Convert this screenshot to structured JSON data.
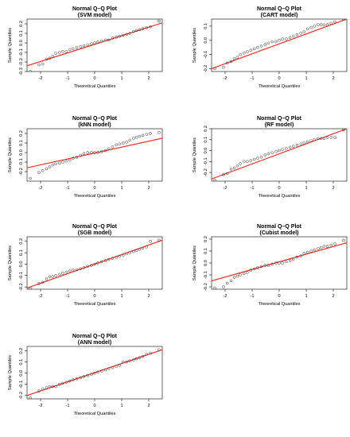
{
  "colors": {
    "line": "#e8312a",
    "points": "#333333",
    "axes": "#000000"
  },
  "chart_data": [
    {
      "type": "scatter",
      "title": "Normal Q–Q Plot",
      "subtitle": "(SVM model)",
      "xlabel": "Theoretical Quantiles",
      "ylabel": "Sample Quantiles",
      "xlim": [
        -2.5,
        2.5
      ],
      "ylim": [
        -0.3,
        0.25
      ],
      "xticks": [
        -2,
        -1,
        0,
        1,
        2
      ],
      "yticks": [
        -0.3,
        -0.2,
        -0.1,
        0.0,
        0.1,
        0.2
      ],
      "ytick_labels": [
        "-0.3",
        "-0.2",
        "-0.1",
        "0.0",
        "0.1",
        "0.2"
      ],
      "line": {
        "x": [
          -2.5,
          2.5
        ],
        "y": [
          -0.24,
          0.21
        ]
      },
      "points": {
        "x": [
          -2.38,
          -2.06,
          -1.92,
          -1.78,
          -1.66,
          -1.55,
          -1.44,
          -1.3,
          -1.18,
          -1.05,
          -0.92,
          -0.8,
          -0.66,
          -0.52,
          -0.4,
          -0.26,
          -0.12,
          0.0,
          0.12,
          0.26,
          0.4,
          0.52,
          0.66,
          0.8,
          0.92,
          1.05,
          1.18,
          1.3,
          1.44,
          1.55,
          1.66,
          1.78,
          1.92,
          2.06,
          2.38
        ],
        "y": [
          -0.3,
          -0.23,
          -0.22,
          -0.17,
          -0.16,
          -0.14,
          -0.11,
          -0.1,
          -0.09,
          -0.09,
          -0.07,
          -0.06,
          -0.05,
          -0.04,
          -0.03,
          -0.02,
          -0.01,
          0.0,
          0.01,
          0.02,
          0.03,
          0.03,
          0.05,
          0.06,
          0.07,
          0.08,
          0.09,
          0.1,
          0.12,
          0.13,
          0.14,
          0.15,
          0.16,
          0.17,
          0.23
        ]
      }
    },
    {
      "type": "scatter",
      "title": "Normal Q–Q Plot",
      "subtitle": "(CART model)",
      "xlabel": "Theoretical Quantiles",
      "ylabel": "Sample Quantiles",
      "xlim": [
        -2.5,
        2.5
      ],
      "ylim": [
        -0.22,
        0.15
      ],
      "xticks": [
        -2,
        -1,
        0,
        1,
        2
      ],
      "yticks": [
        -0.2,
        -0.1,
        0.0,
        0.1
      ],
      "ytick_labels": [
        "-0.2",
        "-0.1",
        "0.0",
        "0.1"
      ],
      "line": {
        "x": [
          -2.5,
          2.5
        ],
        "y": [
          -0.2,
          0.15
        ]
      },
      "points": {
        "x": [
          -2.38,
          -2.06,
          -1.92,
          -1.78,
          -1.66,
          -1.55,
          -1.44,
          -1.3,
          -1.18,
          -1.05,
          -0.92,
          -0.8,
          -0.66,
          -0.52,
          -0.4,
          -0.26,
          -0.12,
          0.0,
          0.12,
          0.26,
          0.4,
          0.52,
          0.66,
          0.8,
          0.92,
          1.05,
          1.18,
          1.3,
          1.44,
          1.55,
          1.66,
          1.78,
          1.92,
          2.06,
          2.38
        ],
        "y": [
          -0.2,
          -0.19,
          -0.16,
          -0.15,
          -0.13,
          -0.12,
          -0.1,
          -0.09,
          -0.08,
          -0.07,
          -0.06,
          -0.05,
          -0.04,
          -0.03,
          -0.02,
          -0.01,
          -0.01,
          0.0,
          0.01,
          0.01,
          0.02,
          0.03,
          0.04,
          0.05,
          0.06,
          0.08,
          0.09,
          0.1,
          0.11,
          0.11,
          0.11,
          0.11,
          0.12,
          0.13,
          0.15
        ]
      }
    },
    {
      "type": "scatter",
      "title": "Normal Q–Q Plot",
      "subtitle": "(kNN model)",
      "xlabel": "Theoretical Quantiles",
      "ylabel": "Sample Quantiles",
      "xlim": [
        -2.5,
        2.5
      ],
      "ylim": [
        -0.3,
        0.25
      ],
      "xticks": [
        -2,
        -1,
        0,
        1,
        2
      ],
      "yticks": [
        -0.2,
        -0.1,
        0.0,
        0.1,
        0.2
      ],
      "ytick_labels": [
        "-0.2",
        "-0.1",
        "0.0",
        "0.1",
        "0.2"
      ],
      "line": {
        "x": [
          -2.5,
          2.5
        ],
        "y": [
          -0.16,
          0.15
        ]
      },
      "points": {
        "x": [
          -2.38,
          -2.06,
          -1.92,
          -1.78,
          -1.66,
          -1.55,
          -1.44,
          -1.3,
          -1.18,
          -1.05,
          -0.92,
          -0.8,
          -0.66,
          -0.52,
          -0.4,
          -0.26,
          -0.12,
          0.0,
          0.12,
          0.26,
          0.4,
          0.52,
          0.66,
          0.8,
          0.92,
          1.05,
          1.18,
          1.3,
          1.44,
          1.55,
          1.66,
          1.78,
          1.92,
          2.06,
          2.38
        ],
        "y": [
          -0.27,
          -0.21,
          -0.19,
          -0.17,
          -0.15,
          -0.13,
          -0.12,
          -0.11,
          -0.1,
          -0.09,
          -0.08,
          -0.06,
          -0.05,
          -0.03,
          -0.01,
          0.0,
          0.0,
          0.0,
          0.0,
          0.01,
          0.02,
          0.04,
          0.06,
          0.08,
          0.09,
          0.1,
          0.11,
          0.13,
          0.15,
          0.16,
          0.17,
          0.18,
          0.19,
          0.2,
          0.21
        ]
      }
    },
    {
      "type": "scatter",
      "title": "Normal Q–Q Plot",
      "subtitle": "(RF model)",
      "xlabel": "Theoretical Quantiles",
      "ylabel": "Sample Quantiles",
      "xlim": [
        -2.5,
        2.5
      ],
      "ylim": [
        -0.28,
        0.2
      ],
      "xticks": [
        -2,
        -1,
        0,
        1,
        2
      ],
      "yticks": [
        -0.2,
        -0.1,
        0.0,
        0.1,
        0.2
      ],
      "ytick_labels": [
        "-0.2",
        "-0.1",
        "0.0",
        "0.1",
        "0.2"
      ],
      "line": {
        "x": [
          -2.5,
          2.5
        ],
        "y": [
          -0.26,
          0.2
        ]
      },
      "points": {
        "x": [
          -2.38,
          -2.06,
          -1.92,
          -1.78,
          -1.66,
          -1.55,
          -1.44,
          -1.3,
          -1.18,
          -1.05,
          -0.92,
          -0.8,
          -0.66,
          -0.52,
          -0.4,
          -0.26,
          -0.12,
          0.0,
          0.12,
          0.26,
          0.4,
          0.52,
          0.66,
          0.8,
          0.92,
          1.05,
          1.18,
          1.3,
          1.44,
          1.55,
          1.66,
          1.78,
          1.92,
          2.06,
          2.38
        ],
        "y": [
          -0.27,
          -0.22,
          -0.21,
          -0.17,
          -0.16,
          -0.14,
          -0.12,
          -0.1,
          -0.1,
          -0.09,
          -0.08,
          -0.07,
          -0.06,
          -0.04,
          -0.03,
          -0.02,
          -0.01,
          0.0,
          0.01,
          0.02,
          0.03,
          0.04,
          0.05,
          0.06,
          0.07,
          0.08,
          0.09,
          0.1,
          0.11,
          0.11,
          0.11,
          0.12,
          0.12,
          0.12,
          0.19
        ]
      }
    },
    {
      "type": "scatter",
      "title": "Normal Q–Q Plot",
      "subtitle": "(SGB model)",
      "xlabel": "Theoretical Quantiles",
      "ylabel": "Sample Quantiles",
      "xlim": [
        -2.5,
        2.5
      ],
      "ylim": [
        -0.22,
        0.24
      ],
      "xticks": [
        -2,
        -1,
        0,
        1,
        2
      ],
      "yticks": [
        -0.2,
        -0.1,
        0.0,
        0.1,
        0.2
      ],
      "ytick_labels": [
        "-0.2",
        "-0.1",
        "0.0",
        "0.1",
        "0.2"
      ],
      "line": {
        "x": [
          -2.5,
          2.5
        ],
        "y": [
          -0.21,
          0.21
        ]
      },
      "points": {
        "x": [
          -2.38,
          -2.06,
          -1.92,
          -1.78,
          -1.66,
          -1.55,
          -1.44,
          -1.3,
          -1.18,
          -1.05,
          -0.92,
          -0.8,
          -0.66,
          -0.52,
          -0.4,
          -0.26,
          -0.12,
          0.0,
          0.12,
          0.26,
          0.4,
          0.52,
          0.66,
          0.8,
          0.92,
          1.05,
          1.18,
          1.3,
          1.44,
          1.55,
          1.66,
          1.78,
          1.92,
          2.06,
          2.38
        ],
        "y": [
          -0.21,
          -0.17,
          -0.16,
          -0.13,
          -0.11,
          -0.11,
          -0.1,
          -0.09,
          -0.08,
          -0.07,
          -0.06,
          -0.05,
          -0.05,
          -0.04,
          -0.03,
          -0.02,
          -0.01,
          0.0,
          0.01,
          0.02,
          0.03,
          0.04,
          0.05,
          0.06,
          0.07,
          0.08,
          0.09,
          0.1,
          0.11,
          0.12,
          0.13,
          0.14,
          0.15,
          0.2,
          0.21
        ]
      }
    },
    {
      "type": "scatter",
      "title": "Normal Q–Q Plot",
      "subtitle": "(Cubist model)",
      "xlabel": "Theoretical Quantiles",
      "ylabel": "Sample Quantiles",
      "xlim": [
        -2.5,
        2.5
      ],
      "ylim": [
        -0.22,
        0.22
      ],
      "xticks": [
        -2,
        -1,
        0,
        1,
        2
      ],
      "yticks": [
        -0.2,
        -0.1,
        0.0,
        0.1,
        0.2
      ],
      "ytick_labels": [
        "-0.2",
        "-0.1",
        "0.0",
        "0.1",
        "0.2"
      ],
      "line": {
        "x": [
          -2.5,
          2.5
        ],
        "y": [
          -0.15,
          0.17
        ]
      },
      "points": {
        "x": [
          -2.38,
          -2.06,
          -1.92,
          -1.78,
          -1.66,
          -1.55,
          -1.44,
          -1.3,
          -1.18,
          -1.05,
          -0.92,
          -0.8,
          -0.66,
          -0.52,
          -0.4,
          -0.26,
          -0.12,
          0.0,
          0.12,
          0.26,
          0.4,
          0.52,
          0.66,
          0.8,
          0.92,
          1.05,
          1.18,
          1.3,
          1.44,
          1.55,
          1.66,
          1.78,
          1.92,
          2.06,
          2.38
        ],
        "y": [
          -0.21,
          -0.2,
          -0.17,
          -0.15,
          -0.12,
          -0.11,
          -0.1,
          -0.09,
          -0.08,
          -0.06,
          -0.05,
          -0.04,
          -0.03,
          -0.02,
          -0.02,
          -0.01,
          0.0,
          0.0,
          0.0,
          0.01,
          0.02,
          0.03,
          0.05,
          0.06,
          0.08,
          0.09,
          0.1,
          0.11,
          0.12,
          0.13,
          0.14,
          0.14,
          0.15,
          0.16,
          0.19
        ]
      }
    },
    {
      "type": "scatter",
      "title": "Normal Q–Q Plot",
      "subtitle": "(ANN model)",
      "xlabel": "Theoretical Quantiles",
      "ylabel": "Sample Quantiles",
      "xlim": [
        -2.5,
        2.5
      ],
      "ylim": [
        -0.23,
        0.24
      ],
      "xticks": [
        -2,
        -1,
        0,
        1,
        2
      ],
      "yticks": [
        -0.2,
        -0.1,
        0.0,
        0.1,
        0.2
      ],
      "ytick_labels": [
        "-0.2",
        "-0.1",
        "0.0",
        "0.1",
        "0.2"
      ],
      "line": {
        "x": [
          -2.5,
          2.5
        ],
        "y": [
          -0.2,
          0.21
        ]
      },
      "points": {
        "x": [
          -2.38,
          -2.06,
          -1.92,
          -1.78,
          -1.66,
          -1.55,
          -1.44,
          -1.3,
          -1.18,
          -1.05,
          -0.92,
          -0.8,
          -0.66,
          -0.52,
          -0.4,
          -0.26,
          -0.12,
          0.0,
          0.12,
          0.26,
          0.4,
          0.52,
          0.66,
          0.8,
          0.92,
          1.05,
          1.18,
          1.3,
          1.44,
          1.55,
          1.66,
          1.78,
          1.92,
          2.06,
          2.38
        ],
        "y": [
          -0.22,
          -0.16,
          -0.14,
          -0.13,
          -0.12,
          -0.12,
          -0.12,
          -0.1,
          -0.09,
          -0.08,
          -0.07,
          -0.06,
          -0.05,
          -0.04,
          -0.03,
          -0.02,
          -0.01,
          0.0,
          0.01,
          0.02,
          0.03,
          0.04,
          0.05,
          0.06,
          0.07,
          0.1,
          0.1,
          0.11,
          0.12,
          0.13,
          0.14,
          0.15,
          0.17,
          0.18,
          0.21
        ]
      }
    }
  ]
}
